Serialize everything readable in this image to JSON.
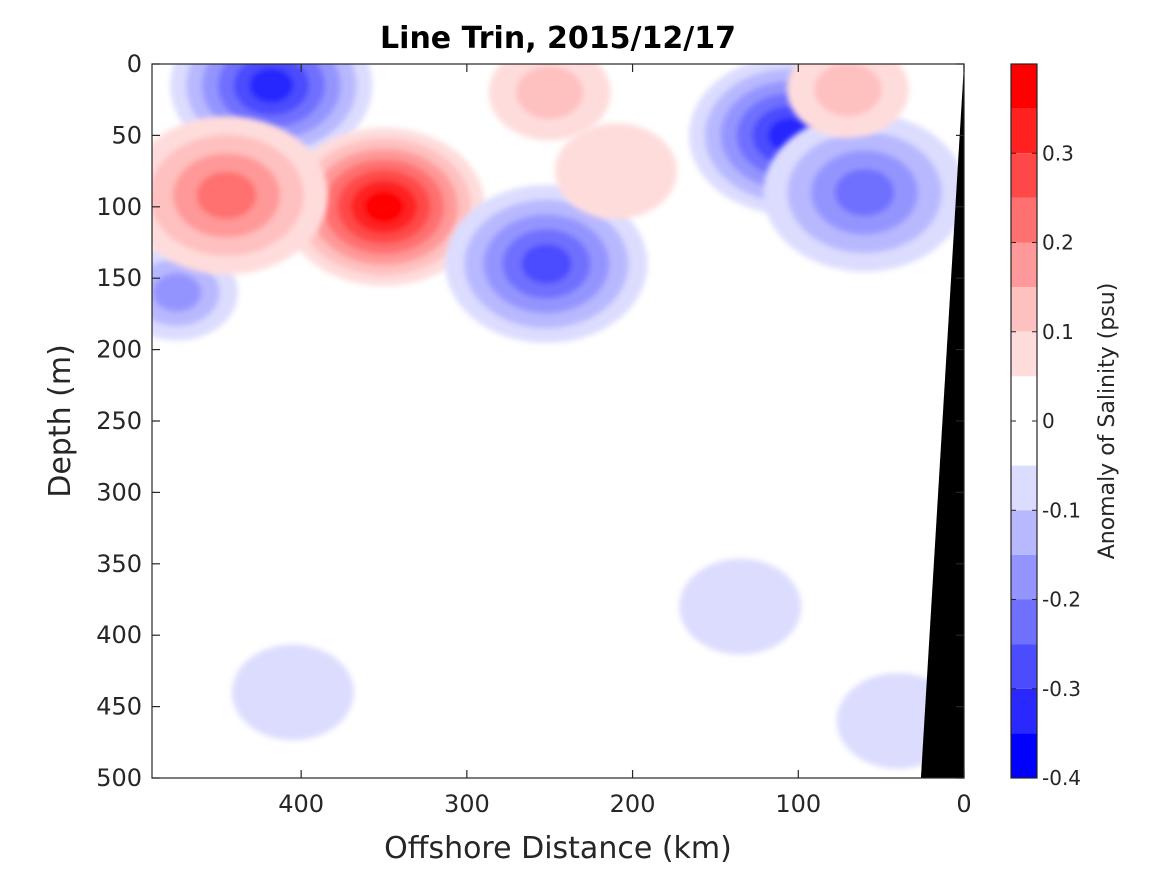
{
  "chart_data": {
    "type": "heatmap",
    "title": "Line Trin, 2015/12/17",
    "xlabel": "Offshore Distance (km)",
    "ylabel": "Depth (m)",
    "x_ticks": [
      400,
      300,
      200,
      100,
      0
    ],
    "y_ticks": [
      0,
      50,
      100,
      150,
      200,
      250,
      300,
      350,
      400,
      450,
      500
    ],
    "xlim": [
      490,
      0
    ],
    "ylim": [
      0,
      500
    ],
    "y_reversed": true,
    "colorbar": {
      "label": "Anomaly of Salinity (psu)",
      "range": [
        -0.4,
        0.4
      ],
      "tick_labels": [
        "0.3",
        "0.2",
        "0.1",
        "0",
        "-0.1",
        "-0.2",
        "-0.3",
        "-0.4"
      ],
      "tick_values": [
        0.3,
        0.2,
        0.1,
        0.0,
        -0.1,
        -0.2,
        -0.3,
        -0.4
      ],
      "levels": [
        {
          "lo": 0.35,
          "hi": 0.4,
          "color": "#ff0000"
        },
        {
          "lo": 0.3,
          "hi": 0.35,
          "color": "#ff2020"
        },
        {
          "lo": 0.25,
          "hi": 0.3,
          "color": "#ff4848"
        },
        {
          "lo": 0.2,
          "hi": 0.25,
          "color": "#ff7070"
        },
        {
          "lo": 0.15,
          "hi": 0.2,
          "color": "#ff9898"
        },
        {
          "lo": 0.1,
          "hi": 0.15,
          "color": "#ffc0c0"
        },
        {
          "lo": 0.05,
          "hi": 0.1,
          "color": "#ffdcdc"
        },
        {
          "lo": 0.0,
          "hi": 0.05,
          "color": "#ffffff"
        },
        {
          "lo": -0.05,
          "hi": 0.0,
          "color": "#ffffff"
        },
        {
          "lo": -0.1,
          "hi": -0.05,
          "color": "#dcdcff"
        },
        {
          "lo": -0.15,
          "hi": -0.1,
          "color": "#b8b8ff"
        },
        {
          "lo": -0.2,
          "hi": -0.15,
          "color": "#9494ff"
        },
        {
          "lo": -0.25,
          "hi": -0.2,
          "color": "#7070ff"
        },
        {
          "lo": -0.3,
          "hi": -0.25,
          "color": "#4c4cff"
        },
        {
          "lo": -0.35,
          "hi": -0.3,
          "color": "#2828ff"
        },
        {
          "lo": -0.4,
          "hi": -0.35,
          "color": "#0000ff"
        }
      ]
    },
    "features": [
      {
        "name": "fresh-core-surface-west",
        "kind": "negative",
        "x": 418,
        "y": 15,
        "peak": -0.32
      },
      {
        "name": "fresh-patch-subsurface-west",
        "kind": "negative",
        "x": 475,
        "y": 160,
        "peak": -0.18
      },
      {
        "name": "salty-core-main",
        "kind": "positive",
        "x": 350,
        "y": 100,
        "peak": 0.36
      },
      {
        "name": "salty-patch-west",
        "kind": "positive",
        "x": 445,
        "y": 92,
        "peak": 0.22
      },
      {
        "name": "salty-patch-surface",
        "kind": "positive",
        "x": 250,
        "y": 20,
        "peak": 0.12
      },
      {
        "name": "fresh-patch-mid",
        "kind": "negative",
        "x": 252,
        "y": 140,
        "peak": -0.26
      },
      {
        "name": "fresh-core-east",
        "kind": "negative",
        "x": 105,
        "y": 50,
        "peak": -0.32
      },
      {
        "name": "fresh-band-east",
        "kind": "negative",
        "x": 60,
        "y": 90,
        "peak": -0.24
      },
      {
        "name": "salty-patch-east-surface",
        "kind": "positive",
        "x": 70,
        "y": 18,
        "peak": 0.12
      },
      {
        "name": "salty-patch-east-small",
        "kind": "positive",
        "x": 210,
        "y": 75,
        "peak": 0.08
      },
      {
        "name": "fresh-patch-deep-west",
        "kind": "negative",
        "x": 405,
        "y": 440,
        "peak": -0.09
      },
      {
        "name": "fresh-patch-deep-mid",
        "kind": "negative",
        "x": 135,
        "y": 380,
        "peak": -0.08
      },
      {
        "name": "fresh-patch-deep-east",
        "kind": "negative",
        "x": 40,
        "y": 460,
        "peak": -0.08
      }
    ],
    "bathymetry": {
      "color": "#000000",
      "points": [
        [
          0,
          0
        ],
        [
          0,
          500
        ],
        [
          26,
          500
        ]
      ]
    }
  }
}
